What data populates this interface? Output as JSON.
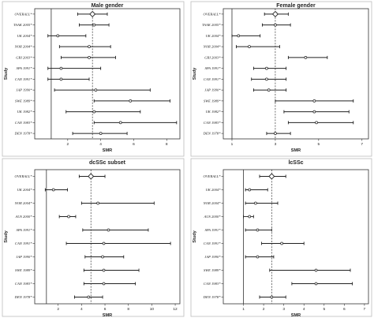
{
  "chart_data": [
    {
      "type": "forest",
      "title": "Male gender",
      "xlabel": "SMR",
      "ylabel": "Study",
      "xlim": [
        0,
        8.8
      ],
      "xticks": [
        2,
        4,
        6,
        8
      ],
      "null_line": 1,
      "ref_line": 3.5,
      "studies": [
        {
          "label": "OVERALL*",
          "est": 3.5,
          "lo": 2.6,
          "hi": 4.4,
          "summary": true
        },
        {
          "label": "TAAK 2005*",
          "est": 3.6,
          "lo": 2.7,
          "hi": 4.5
        },
        {
          "label": "UK 2004*",
          "est": 1.4,
          "lo": 0.8,
          "hi": 3.1
        },
        {
          "label": "NOR 2004*",
          "est": 3.3,
          "lo": 1.5,
          "hi": 4.6
        },
        {
          "label": "GRI 2003*",
          "est": 3.3,
          "lo": 1.6,
          "hi": 4.9
        },
        {
          "label": "SPA 1991*",
          "est": 1.6,
          "lo": 0.8,
          "hi": 4.0
        },
        {
          "label": "CAN 1991*",
          "est": 1.6,
          "lo": 0.8,
          "hi": 3.3
        },
        {
          "label": "JAP 1990*",
          "est": 3.7,
          "lo": 1.2,
          "hi": 7.0
        },
        {
          "label": "SWE 1989*",
          "est": 5.8,
          "lo": 3.6,
          "hi": 8.2
        },
        {
          "label": "UK 1982*",
          "est": 3.6,
          "lo": 1.9,
          "hi": 6.4
        },
        {
          "label": "CAN 1983*",
          "est": 5.2,
          "lo": 3.6,
          "hi": 8.6
        },
        {
          "label": "DEN 1978*",
          "est": 4.0,
          "lo": 2.3,
          "hi": 5.6
        }
      ]
    },
    {
      "type": "forest",
      "title": "Female gender",
      "xlabel": "SMR",
      "ylabel": "Study",
      "xlim": [
        0.6,
        7.3
      ],
      "xticks": [
        1,
        3,
        5,
        7
      ],
      "null_line": 1,
      "ref_line": 3.0,
      "studies": [
        {
          "label": "OVERALL*",
          "est": 3.0,
          "lo": 2.5,
          "hi": 3.6,
          "summary": true
        },
        {
          "label": "TAAK 2005*",
          "est": 3.0,
          "lo": 2.4,
          "hi": 3.7
        },
        {
          "label": "UK 2004*",
          "est": 1.3,
          "lo": 1.0,
          "hi": 2.3
        },
        {
          "label": "NOR 2004*",
          "est": 1.8,
          "lo": 1.2,
          "hi": 3.2
        },
        {
          "label": "GRI 2003*",
          "est": 4.4,
          "lo": 3.6,
          "hi": 5.4
        },
        {
          "label": "SPA 1991*",
          "est": 2.6,
          "lo": 2.0,
          "hi": 3.5
        },
        {
          "label": "CAN 1991*",
          "est": 2.6,
          "lo": 1.9,
          "hi": 3.5
        },
        {
          "label": "JAP 1990*",
          "est": 2.7,
          "lo": 2.0,
          "hi": 3.5
        },
        {
          "label": "SWE 1989*",
          "est": 4.8,
          "lo": 3.0,
          "hi": 6.6
        },
        {
          "label": "UK 1982*",
          "est": 4.8,
          "lo": 3.4,
          "hi": 6.4
        },
        {
          "label": "CAN 1983*",
          "est": 4.9,
          "lo": 3.6,
          "hi": 6.6
        },
        {
          "label": "DEN 1978*",
          "est": 3.0,
          "lo": 2.6,
          "hi": 3.7
        }
      ]
    },
    {
      "type": "forest",
      "title": "dcSSc subset",
      "xlabel": "SMR",
      "ylabel": "Study",
      "xlim": [
        0,
        12.4
      ],
      "xticks": [
        2,
        4,
        6,
        8,
        10,
        12
      ],
      "null_line": 1,
      "ref_line": 4.8,
      "studies": [
        {
          "label": "OVERALL*",
          "est": 4.8,
          "lo": 3.8,
          "hi": 6.0,
          "summary": true
        },
        {
          "label": "UK 2004*",
          "est": 1.6,
          "lo": 0.9,
          "hi": 2.8
        },
        {
          "label": "NOR 2004*",
          "est": 5.4,
          "lo": 4.0,
          "hi": 10.2
        },
        {
          "label": "AUS 2000*",
          "est": 2.9,
          "lo": 2.1,
          "hi": 3.5
        },
        {
          "label": "SPA 1991*",
          "est": 6.3,
          "lo": 4.1,
          "hi": 9.7
        },
        {
          "label": "CAN 1991*",
          "est": 5.9,
          "lo": 2.7,
          "hi": 11.6
        },
        {
          "label": "JAP 1990*",
          "est": 5.8,
          "lo": 4.3,
          "hi": 7.6
        },
        {
          "label": "SWE 1989*",
          "est": 5.9,
          "lo": 4.2,
          "hi": 8.9
        },
        {
          "label": "CAN 1983*",
          "est": 5.9,
          "lo": 4.2,
          "hi": 8.6
        },
        {
          "label": "DEN 1978*",
          "est": 4.6,
          "lo": 3.4,
          "hi": 5.8
        }
      ]
    },
    {
      "type": "forest",
      "title": "lcSSc",
      "xlabel": "SMR",
      "ylabel": "Study",
      "xlim": [
        0,
        7.2
      ],
      "xticks": [
        1,
        2,
        3,
        4,
        5,
        6,
        7
      ],
      "null_line": 1,
      "ref_line": 2.4,
      "studies": [
        {
          "label": "OVERALL*",
          "est": 2.4,
          "lo": 1.8,
          "hi": 3.1,
          "summary": true
        },
        {
          "label": "UK 2004*",
          "est": 1.3,
          "lo": 1.1,
          "hi": 2.2
        },
        {
          "label": "NOR 2004*",
          "est": 1.6,
          "lo": 1.1,
          "hi": 2.7
        },
        {
          "label": "AUS 2000*",
          "est": 1.3,
          "lo": 1.0,
          "hi": 1.5
        },
        {
          "label": "SPA 1991*",
          "est": 1.7,
          "lo": 1.1,
          "hi": 2.4
        },
        {
          "label": "CAN 1991*",
          "est": 2.9,
          "lo": 1.9,
          "hi": 4.0
        },
        {
          "label": "JAP 1990*",
          "est": 1.7,
          "lo": 1.1,
          "hi": 2.5
        },
        {
          "label": "SWE 1989*",
          "est": 4.6,
          "lo": 2.3,
          "hi": 6.3
        },
        {
          "label": "CAN 1983*",
          "est": 4.6,
          "lo": 3.4,
          "hi": 6.4
        },
        {
          "label": "DEN 1978*",
          "est": 2.4,
          "lo": 1.8,
          "hi": 3.1
        }
      ]
    }
  ]
}
